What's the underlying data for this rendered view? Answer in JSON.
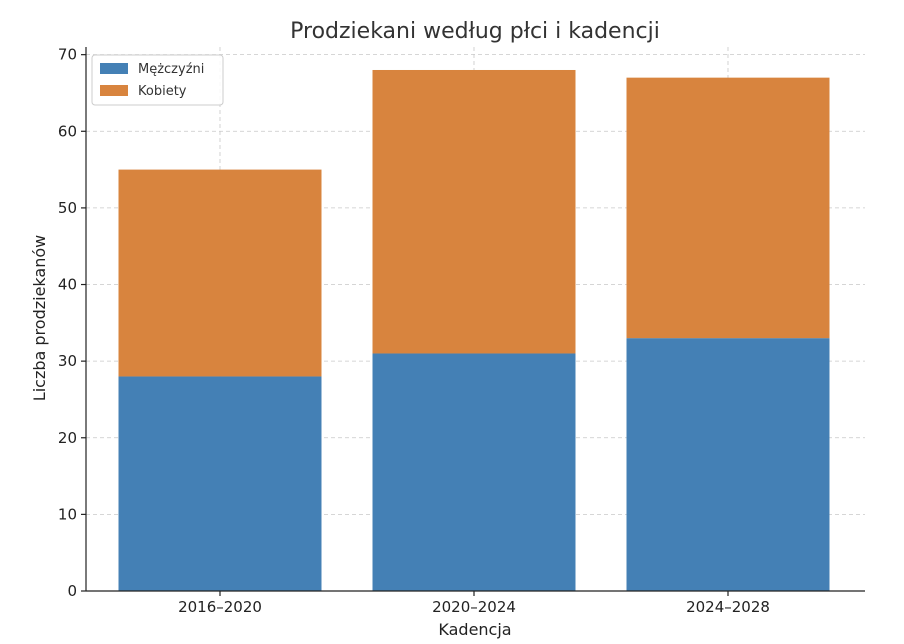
{
  "chart_data": {
    "type": "bar",
    "stacked": true,
    "title": "Prodziekani według płci i kadencji",
    "xlabel": "Kadencja",
    "ylabel": "Liczba prodziekanów",
    "categories": [
      "2016–2020",
      "2020–2024",
      "2024–2028"
    ],
    "series": [
      {
        "name": "Mężczyźni",
        "values": [
          28,
          31,
          33
        ],
        "color": "#4480b5"
      },
      {
        "name": "Kobiety",
        "values": [
          27,
          37,
          34
        ],
        "color": "#d8843e"
      }
    ],
    "ylim": [
      0,
      71
    ],
    "yticks": [
      0,
      10,
      20,
      30,
      40,
      50,
      60,
      70
    ],
    "grid": true,
    "legend_position": "top-left"
  }
}
